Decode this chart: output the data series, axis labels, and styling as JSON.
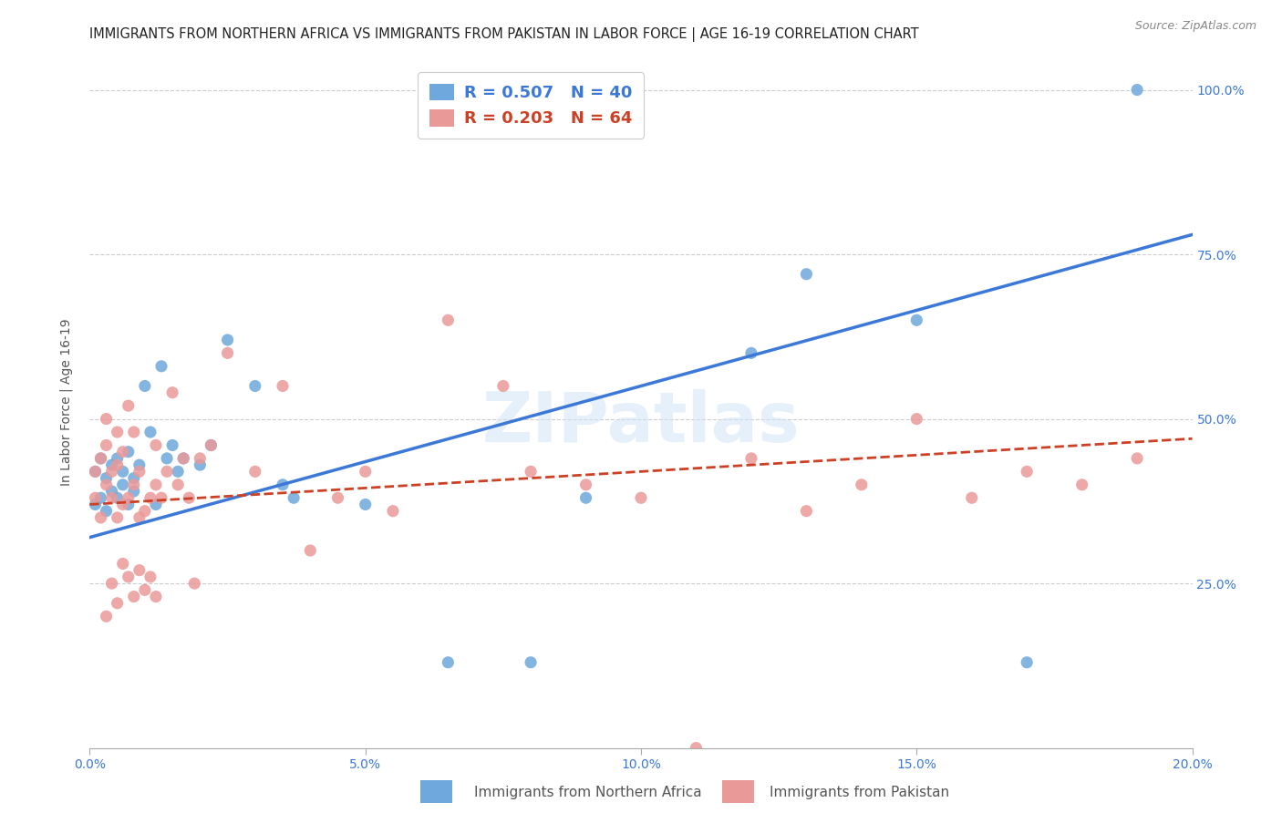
{
  "title": "IMMIGRANTS FROM NORTHERN AFRICA VS IMMIGRANTS FROM PAKISTAN IN LABOR FORCE | AGE 16-19 CORRELATION CHART",
  "source": "Source: ZipAtlas.com",
  "ylabel": "In Labor Force | Age 16-19",
  "watermark": "ZIPatlas",
  "blue_R": 0.507,
  "blue_N": 40,
  "pink_R": 0.203,
  "pink_N": 64,
  "blue_color": "#6fa8dc",
  "pink_color": "#ea9999",
  "blue_line_color": "#3c78d8",
  "pink_line_color": "#cc4125",
  "blue_scatter_x": [
    0.001,
    0.001,
    0.002,
    0.002,
    0.003,
    0.003,
    0.004,
    0.004,
    0.005,
    0.005,
    0.006,
    0.006,
    0.007,
    0.007,
    0.008,
    0.008,
    0.009,
    0.01,
    0.011,
    0.012,
    0.013,
    0.014,
    0.015,
    0.016,
    0.017,
    0.02,
    0.022,
    0.025,
    0.03,
    0.035,
    0.037,
    0.05,
    0.065,
    0.08,
    0.09,
    0.12,
    0.13,
    0.15,
    0.17,
    0.19
  ],
  "blue_scatter_y": [
    0.37,
    0.42,
    0.38,
    0.44,
    0.36,
    0.41,
    0.39,
    0.43,
    0.38,
    0.44,
    0.4,
    0.42,
    0.37,
    0.45,
    0.41,
    0.39,
    0.43,
    0.55,
    0.48,
    0.37,
    0.58,
    0.44,
    0.46,
    0.42,
    0.44,
    0.43,
    0.46,
    0.62,
    0.55,
    0.4,
    0.38,
    0.37,
    0.13,
    0.13,
    0.38,
    0.6,
    0.72,
    0.65,
    0.13,
    1.0
  ],
  "pink_scatter_x": [
    0.001,
    0.001,
    0.002,
    0.002,
    0.003,
    0.003,
    0.003,
    0.004,
    0.004,
    0.005,
    0.005,
    0.005,
    0.006,
    0.006,
    0.007,
    0.007,
    0.008,
    0.008,
    0.009,
    0.009,
    0.01,
    0.011,
    0.012,
    0.012,
    0.013,
    0.014,
    0.015,
    0.016,
    0.017,
    0.018,
    0.019,
    0.02,
    0.022,
    0.025,
    0.03,
    0.035,
    0.04,
    0.045,
    0.05,
    0.055,
    0.065,
    0.075,
    0.08,
    0.09,
    0.1,
    0.11,
    0.12,
    0.13,
    0.14,
    0.15,
    0.16,
    0.17,
    0.18,
    0.19,
    0.003,
    0.004,
    0.005,
    0.006,
    0.007,
    0.008,
    0.009,
    0.01,
    0.011,
    0.012
  ],
  "pink_scatter_y": [
    0.38,
    0.42,
    0.35,
    0.44,
    0.4,
    0.46,
    0.5,
    0.38,
    0.42,
    0.35,
    0.43,
    0.48,
    0.37,
    0.45,
    0.38,
    0.52,
    0.4,
    0.48,
    0.35,
    0.42,
    0.36,
    0.38,
    0.4,
    0.46,
    0.38,
    0.42,
    0.54,
    0.4,
    0.44,
    0.38,
    0.25,
    0.44,
    0.46,
    0.6,
    0.42,
    0.55,
    0.3,
    0.38,
    0.42,
    0.36,
    0.65,
    0.55,
    0.42,
    0.4,
    0.38,
    0.0,
    0.44,
    0.36,
    0.4,
    0.5,
    0.38,
    0.42,
    0.4,
    0.44,
    0.2,
    0.25,
    0.22,
    0.28,
    0.26,
    0.23,
    0.27,
    0.24,
    0.26,
    0.23
  ],
  "xlim": [
    0.0,
    0.2
  ],
  "ylim": [
    0.0,
    1.05
  ],
  "xticks": [
    0.0,
    0.05,
    0.1,
    0.15,
    0.2
  ],
  "xtick_labels": [
    "0.0%",
    "5.0%",
    "10.0%",
    "15.0%",
    "20.0%"
  ],
  "ytick_labels": [
    "25.0%",
    "50.0%",
    "75.0%",
    "100.0%"
  ],
  "ytick_values": [
    0.25,
    0.5,
    0.75,
    1.0
  ],
  "legend_blue_label": "Immigrants from Northern Africa",
  "legend_pink_label": "Immigrants from Pakistan",
  "title_fontsize": 10.5,
  "axis_label_fontsize": 10,
  "tick_fontsize": 10,
  "legend_fontsize": 13
}
